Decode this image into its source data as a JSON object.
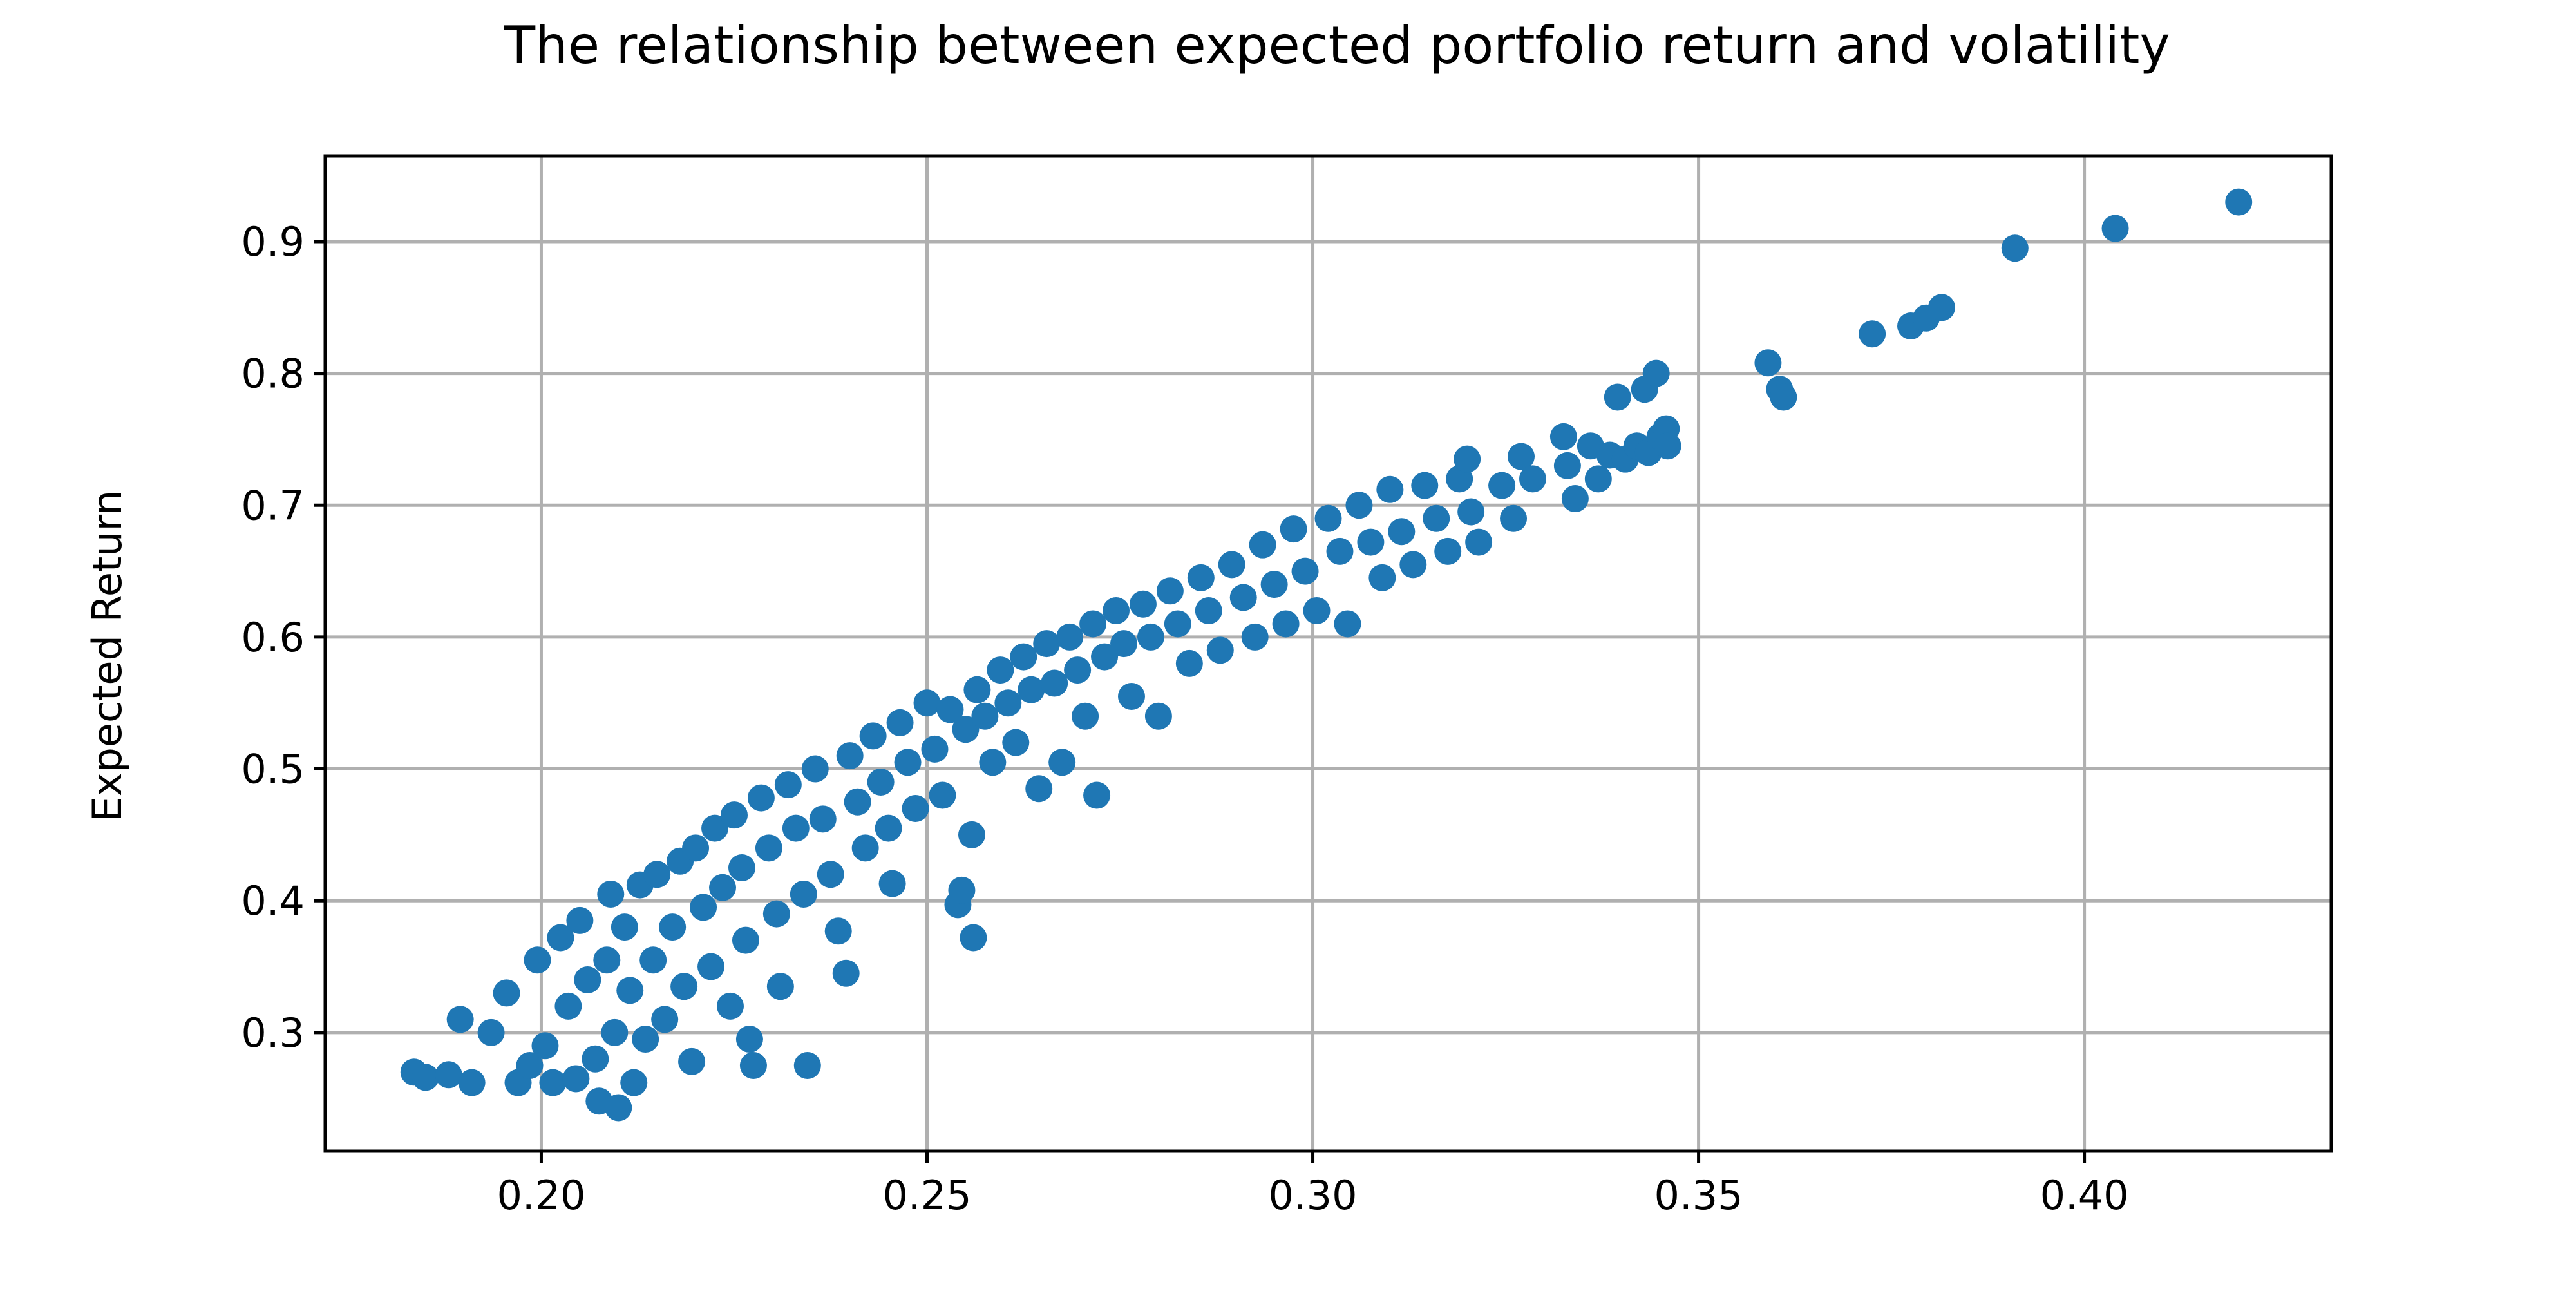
{
  "chart_data": {
    "type": "scatter",
    "title": "The relationship between expected portfolio return and volatility",
    "xlabel": "",
    "ylabel": "Expected Return",
    "xlim": [
      0.172,
      0.432
    ],
    "ylim": [
      0.21,
      0.965
    ],
    "xticks": [
      0.2,
      0.25,
      0.3,
      0.35,
      0.4
    ],
    "xtick_labels": [
      "0.20",
      "0.25",
      "0.30",
      "0.35",
      "0.40"
    ],
    "yticks": [
      0.3,
      0.4,
      0.5,
      0.6,
      0.7,
      0.8,
      0.9
    ],
    "ytick_labels": [
      "0.3",
      "0.4",
      "0.5",
      "0.6",
      "0.7",
      "0.8",
      "0.9"
    ],
    "grid": true,
    "marker_color": "#1f77b4",
    "points": [
      [
        0.1835,
        0.27
      ],
      [
        0.185,
        0.266
      ],
      [
        0.188,
        0.268
      ],
      [
        0.1895,
        0.31
      ],
      [
        0.191,
        0.262
      ],
      [
        0.1935,
        0.3
      ],
      [
        0.1955,
        0.33
      ],
      [
        0.197,
        0.262
      ],
      [
        0.1985,
        0.275
      ],
      [
        0.1995,
        0.355
      ],
      [
        0.2005,
        0.29
      ],
      [
        0.2015,
        0.262
      ],
      [
        0.2025,
        0.372
      ],
      [
        0.2035,
        0.32
      ],
      [
        0.2045,
        0.265
      ],
      [
        0.205,
        0.385
      ],
      [
        0.206,
        0.34
      ],
      [
        0.207,
        0.28
      ],
      [
        0.2075,
        0.248
      ],
      [
        0.2085,
        0.355
      ],
      [
        0.209,
        0.405
      ],
      [
        0.2095,
        0.3
      ],
      [
        0.21,
        0.243
      ],
      [
        0.2108,
        0.38
      ],
      [
        0.2115,
        0.332
      ],
      [
        0.212,
        0.262
      ],
      [
        0.2128,
        0.412
      ],
      [
        0.2135,
        0.295
      ],
      [
        0.2145,
        0.355
      ],
      [
        0.215,
        0.42
      ],
      [
        0.216,
        0.31
      ],
      [
        0.217,
        0.38
      ],
      [
        0.218,
        0.43
      ],
      [
        0.2185,
        0.335
      ],
      [
        0.2195,
        0.278
      ],
      [
        0.22,
        0.44
      ],
      [
        0.221,
        0.395
      ],
      [
        0.222,
        0.35
      ],
      [
        0.2225,
        0.455
      ],
      [
        0.2235,
        0.41
      ],
      [
        0.2245,
        0.32
      ],
      [
        0.225,
        0.465
      ],
      [
        0.226,
        0.425
      ],
      [
        0.2265,
        0.37
      ],
      [
        0.227,
        0.295
      ],
      [
        0.2275,
        0.275
      ],
      [
        0.2285,
        0.478
      ],
      [
        0.2295,
        0.44
      ],
      [
        0.2305,
        0.39
      ],
      [
        0.231,
        0.335
      ],
      [
        0.232,
        0.488
      ],
      [
        0.233,
        0.455
      ],
      [
        0.234,
        0.405
      ],
      [
        0.2345,
        0.275
      ],
      [
        0.2355,
        0.5
      ],
      [
        0.2365,
        0.462
      ],
      [
        0.2375,
        0.42
      ],
      [
        0.2385,
        0.377
      ],
      [
        0.2395,
        0.345
      ],
      [
        0.24,
        0.51
      ],
      [
        0.241,
        0.475
      ],
      [
        0.242,
        0.44
      ],
      [
        0.243,
        0.525
      ],
      [
        0.244,
        0.49
      ],
      [
        0.245,
        0.455
      ],
      [
        0.2455,
        0.413
      ],
      [
        0.2465,
        0.535
      ],
      [
        0.2475,
        0.505
      ],
      [
        0.2485,
        0.47
      ],
      [
        0.25,
        0.55
      ],
      [
        0.251,
        0.515
      ],
      [
        0.252,
        0.48
      ],
      [
        0.253,
        0.545
      ],
      [
        0.254,
        0.397
      ],
      [
        0.2545,
        0.408
      ],
      [
        0.255,
        0.53
      ],
      [
        0.2558,
        0.45
      ],
      [
        0.256,
        0.372
      ],
      [
        0.2565,
        0.56
      ],
      [
        0.2575,
        0.54
      ],
      [
        0.2585,
        0.505
      ],
      [
        0.2595,
        0.575
      ],
      [
        0.2605,
        0.55
      ],
      [
        0.2615,
        0.52
      ],
      [
        0.2625,
        0.585
      ],
      [
        0.2635,
        0.56
      ],
      [
        0.2645,
        0.485
      ],
      [
        0.2655,
        0.595
      ],
      [
        0.2665,
        0.565
      ],
      [
        0.2675,
        0.505
      ],
      [
        0.2685,
        0.6
      ],
      [
        0.2695,
        0.575
      ],
      [
        0.2705,
        0.54
      ],
      [
        0.2715,
        0.61
      ],
      [
        0.272,
        0.48
      ],
      [
        0.273,
        0.585
      ],
      [
        0.2745,
        0.62
      ],
      [
        0.2755,
        0.595
      ],
      [
        0.2765,
        0.555
      ],
      [
        0.278,
        0.625
      ],
      [
        0.279,
        0.6
      ],
      [
        0.28,
        0.54
      ],
      [
        0.2815,
        0.635
      ],
      [
        0.2825,
        0.61
      ],
      [
        0.284,
        0.58
      ],
      [
        0.2855,
        0.645
      ],
      [
        0.2865,
        0.62
      ],
      [
        0.288,
        0.59
      ],
      [
        0.2895,
        0.655
      ],
      [
        0.291,
        0.63
      ],
      [
        0.2925,
        0.6
      ],
      [
        0.2935,
        0.67
      ],
      [
        0.295,
        0.64
      ],
      [
        0.2965,
        0.61
      ],
      [
        0.2975,
        0.682
      ],
      [
        0.299,
        0.65
      ],
      [
        0.3005,
        0.62
      ],
      [
        0.302,
        0.69
      ],
      [
        0.3035,
        0.665
      ],
      [
        0.3045,
        0.61
      ],
      [
        0.306,
        0.7
      ],
      [
        0.3075,
        0.672
      ],
      [
        0.309,
        0.645
      ],
      [
        0.31,
        0.712
      ],
      [
        0.3115,
        0.68
      ],
      [
        0.313,
        0.655
      ],
      [
        0.3145,
        0.715
      ],
      [
        0.316,
        0.69
      ],
      [
        0.3175,
        0.665
      ],
      [
        0.319,
        0.72
      ],
      [
        0.32,
        0.735
      ],
      [
        0.3205,
        0.695
      ],
      [
        0.3215,
        0.672
      ],
      [
        0.3245,
        0.715
      ],
      [
        0.326,
        0.69
      ],
      [
        0.327,
        0.737
      ],
      [
        0.3285,
        0.72
      ],
      [
        0.3325,
        0.752
      ],
      [
        0.333,
        0.73
      ],
      [
        0.334,
        0.705
      ],
      [
        0.336,
        0.745
      ],
      [
        0.337,
        0.72
      ],
      [
        0.3385,
        0.738
      ],
      [
        0.3395,
        0.782
      ],
      [
        0.3405,
        0.735
      ],
      [
        0.342,
        0.745
      ],
      [
        0.343,
        0.788
      ],
      [
        0.3435,
        0.74
      ],
      [
        0.3445,
        0.8
      ],
      [
        0.345,
        0.752
      ],
      [
        0.3458,
        0.758
      ],
      [
        0.346,
        0.745
      ],
      [
        0.359,
        0.808
      ],
      [
        0.3605,
        0.788
      ],
      [
        0.361,
        0.782
      ],
      [
        0.3725,
        0.83
      ],
      [
        0.3775,
        0.836
      ],
      [
        0.3795,
        0.842
      ],
      [
        0.3815,
        0.85
      ],
      [
        0.391,
        0.895
      ],
      [
        0.404,
        0.91
      ],
      [
        0.42,
        0.93
      ]
    ]
  }
}
